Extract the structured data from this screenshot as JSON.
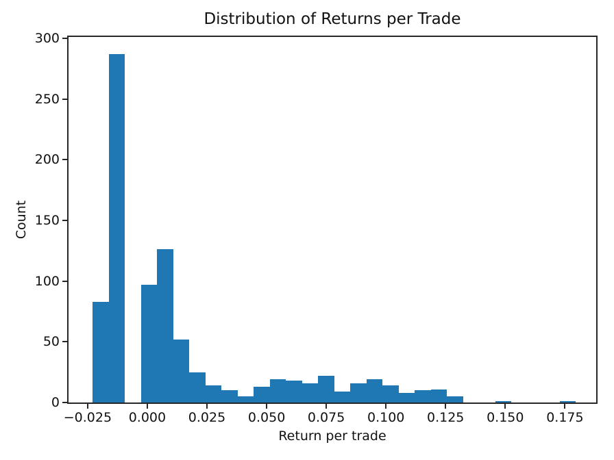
{
  "chart_data": {
    "type": "bar",
    "subtype": "histogram",
    "title": "Distribution of Returns per Trade",
    "xlabel": "Return per trade",
    "ylabel": "Count",
    "bin_start": -0.0229,
    "bin_width": 0.006748,
    "counts": [
      83,
      287,
      0,
      97,
      126,
      52,
      25,
      14,
      10,
      5,
      13,
      19,
      18,
      16,
      22,
      9,
      16,
      19,
      14,
      8,
      10,
      11,
      5,
      0,
      0,
      1,
      0,
      0,
      0,
      1
    ],
    "xlim": [
      -0.033,
      0.1881
    ],
    "ylim": [
      0,
      301
    ],
    "xticks": [
      -0.025,
      0.0,
      0.025,
      0.05,
      0.075,
      0.1,
      0.125,
      0.15,
      0.175
    ],
    "xtick_labels": [
      "−0.025",
      "0.000",
      "0.025",
      "0.050",
      "0.075",
      "0.100",
      "0.125",
      "0.150",
      "0.175"
    ],
    "yticks": [
      0,
      50,
      100,
      150,
      200,
      250,
      300
    ],
    "ytick_labels": [
      "0",
      "50",
      "100",
      "150",
      "200",
      "250",
      "300"
    ],
    "bar_color": "#1f77b4",
    "axis_color": "#262626",
    "grid": false,
    "legend": null
  }
}
